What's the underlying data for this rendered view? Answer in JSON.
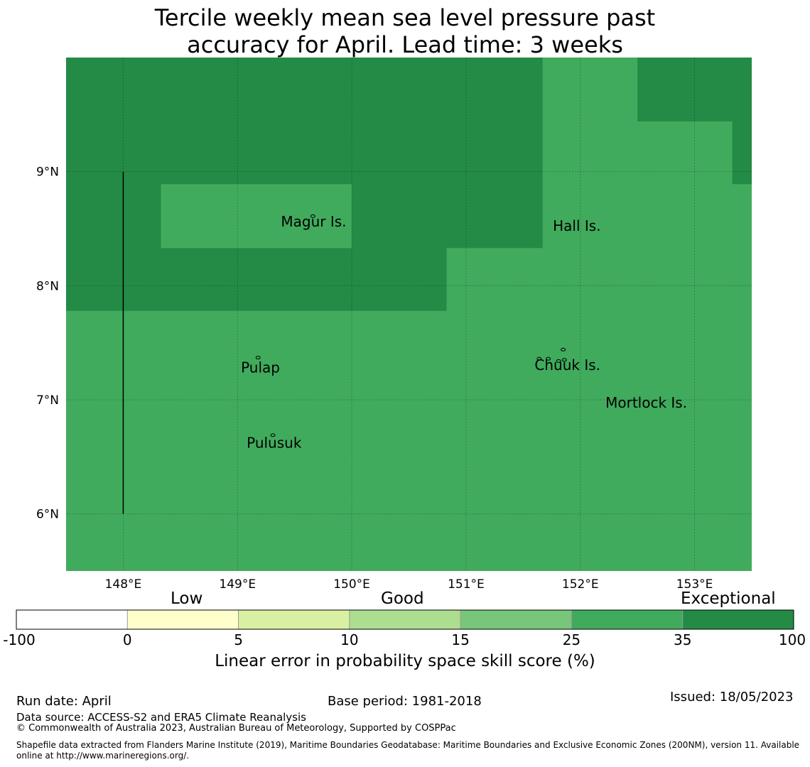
{
  "title_line1": "Tercile weekly mean sea level pressure past",
  "title_line2": "accuracy for April. Lead time: 3 weeks",
  "map": {
    "lon_range": [
      147.5,
      153.5
    ],
    "lat_range": [
      5.5,
      10.0
    ],
    "lon_ticks": [
      148,
      149,
      150,
      151,
      152,
      153
    ],
    "lon_tick_labels": [
      "148°E",
      "149°E",
      "150°E",
      "151°E",
      "152°E",
      "153°E"
    ],
    "lat_ticks": [
      6,
      7,
      8,
      9
    ],
    "lat_tick_labels": [
      "6°N",
      "7°N",
      "8°N",
      "9°N"
    ],
    "grid": true,
    "background_category_color": "#41ab5d",
    "regions": [
      {
        "score_class": "35-100",
        "color": "#238b45",
        "lon": [
          147.5,
          150.83
        ],
        "lat": [
          7.78,
          10.0
        ]
      },
      {
        "score_class": "35-100",
        "color": "#238b45",
        "lon": [
          150.83,
          151.67
        ],
        "lat": [
          8.33,
          10.0
        ]
      },
      {
        "score_class": "25-35",
        "color": "#41ab5d",
        "lon": [
          148.33,
          150.0
        ],
        "lat": [
          8.33,
          8.89
        ]
      },
      {
        "score_class": "35-100",
        "color": "#238b45",
        "lon": [
          152.5,
          153.5
        ],
        "lat": [
          9.44,
          10.0
        ]
      },
      {
        "score_class": "35-100",
        "color": "#238b45",
        "lon": [
          153.33,
          153.5
        ],
        "lat": [
          8.89,
          9.44
        ]
      }
    ],
    "boundary_line": {
      "lon": 148.0,
      "lat": [
        6.0,
        9.0
      ]
    },
    "places": [
      {
        "name": "Magur Is.",
        "lon": 149.38,
        "lat": 8.52
      },
      {
        "name": "Hall Is.",
        "lon": 151.76,
        "lat": 8.48
      },
      {
        "name": "Pulap",
        "lon": 149.03,
        "lat": 7.24
      },
      {
        "name": "Chuuk Is.",
        "lon": 151.6,
        "lat": 7.26
      },
      {
        "name": "Mortlock Is.",
        "lon": 152.22,
        "lat": 6.93
      },
      {
        "name": "Pulusuk",
        "lon": 149.08,
        "lat": 6.58
      }
    ],
    "islands": [
      {
        "lon": 149.66,
        "lat": 8.61
      },
      {
        "lon": 149.18,
        "lat": 7.37
      },
      {
        "lon": 149.31,
        "lat": 6.69
      },
      {
        "lon": 151.64,
        "lat": 7.36
      },
      {
        "lon": 151.72,
        "lat": 7.36
      },
      {
        "lon": 151.85,
        "lat": 7.44
      },
      {
        "lon": 151.86,
        "lat": 7.35
      },
      {
        "lon": 151.81,
        "lat": 7.34
      }
    ]
  },
  "colorbar": {
    "category_labels": [
      "Low",
      "Good",
      "Exceptional"
    ],
    "bounds": [
      "-100",
      "0",
      "5",
      "10",
      "15",
      "25",
      "35",
      "100"
    ],
    "colors": [
      "#ffffff",
      "#ffffcc",
      "#d9f0a3",
      "#addd8e",
      "#78c679",
      "#41ab5d",
      "#238b45"
    ],
    "label": "Linear error in probability space skill score (%)"
  },
  "footer": {
    "run_date": "Run date: April",
    "base_period": "Base period: 1981-2018",
    "issued": "Issued: 18/05/2023",
    "data_source": "Data source: ACCESS-S2 and ERA5 Climate Reanalysis",
    "copyright": "© Commonwealth of Australia 2023, Australian Bureau of Meteorology, Supported by COSPPac",
    "shapefile_line1": "Shapefile data extracted from Flanders Marine Institute (2019), Maritime Boundaries Geodatabase: Maritime Boundaries and Exclusive Economic Zones (200NM), version 11. Available",
    "shapefile_line2": "online at http://www.marineregions.org/."
  }
}
